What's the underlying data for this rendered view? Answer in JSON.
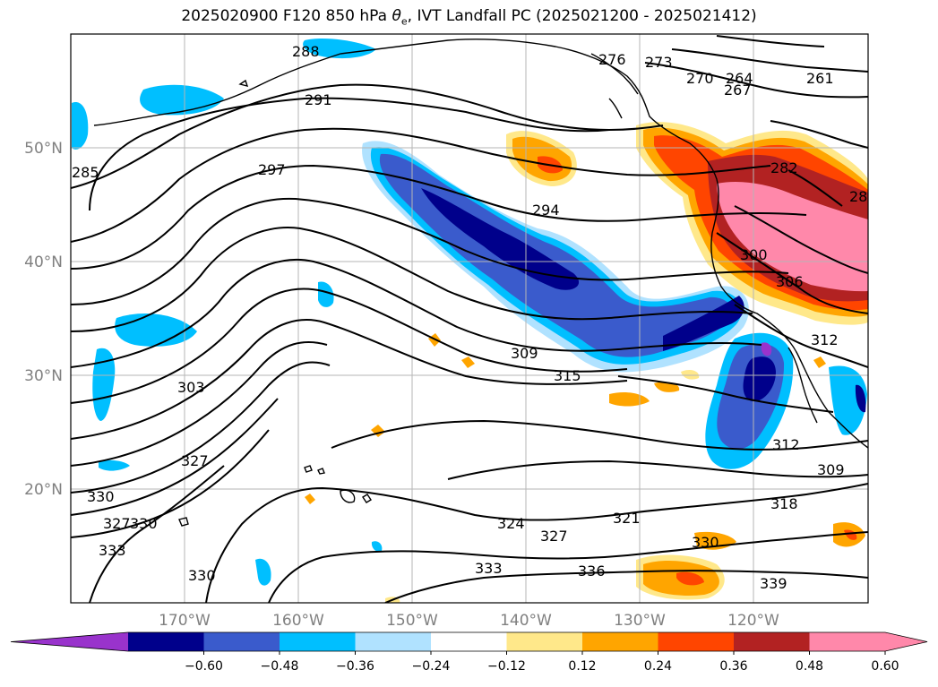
{
  "title": {
    "prefix": "2025020900 F120 850 hPa ",
    "theta": "θ",
    "sub": "e",
    "suffix": ", IVT Landfall PC (2025021200 - 2025021412)"
  },
  "lon_ticks": [
    "170°W",
    "160°W",
    "150°W",
    "140°W",
    "130°W",
    "120°W"
  ],
  "lat_ticks": [
    "50°N",
    "40°N",
    "30°N",
    "20°N"
  ],
  "contour_labels": [
    "288",
    "291",
    "297",
    "294",
    "276",
    "273",
    "270",
    "264",
    "267",
    "261",
    "282",
    "28",
    "300",
    "306",
    "312",
    "309",
    "315",
    "303",
    "327",
    "330",
    "327",
    "330",
    "333",
    "324",
    "321",
    "318",
    "309",
    "312",
    "330",
    "333",
    "336",
    "339",
    "330",
    "285"
  ],
  "colorbar": {
    "ticks": [
      "−0.60",
      "−0.48",
      "−0.36",
      "−0.24",
      "−0.12",
      "0.12",
      "0.24",
      "0.36",
      "0.48",
      "0.60"
    ],
    "colors": [
      "#9933cc",
      "#00008b",
      "#3a5bcc",
      "#00bfff",
      "#b0e2ff",
      "#ffffff",
      "#ffe88a",
      "#ffa500",
      "#ff4500",
      "#b22222",
      "#ff88aa",
      "#ff88aa"
    ]
  }
}
